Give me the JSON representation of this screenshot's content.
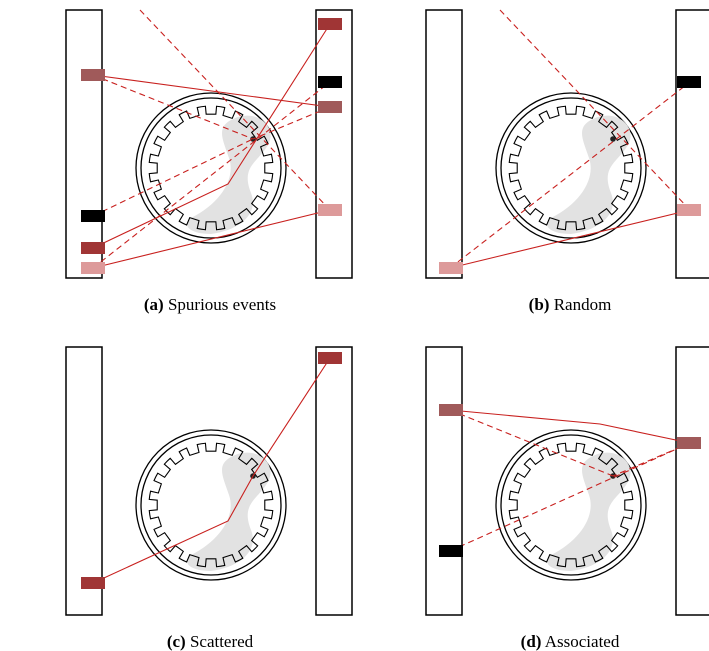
{
  "panels": [
    {
      "label": "(a)",
      "caption": "Spurious events"
    },
    {
      "label": "(b)",
      "caption": "Random"
    },
    {
      "label": "(c)",
      "caption": "Scattered"
    },
    {
      "label": "(d)",
      "caption": "Associated"
    }
  ]
}
